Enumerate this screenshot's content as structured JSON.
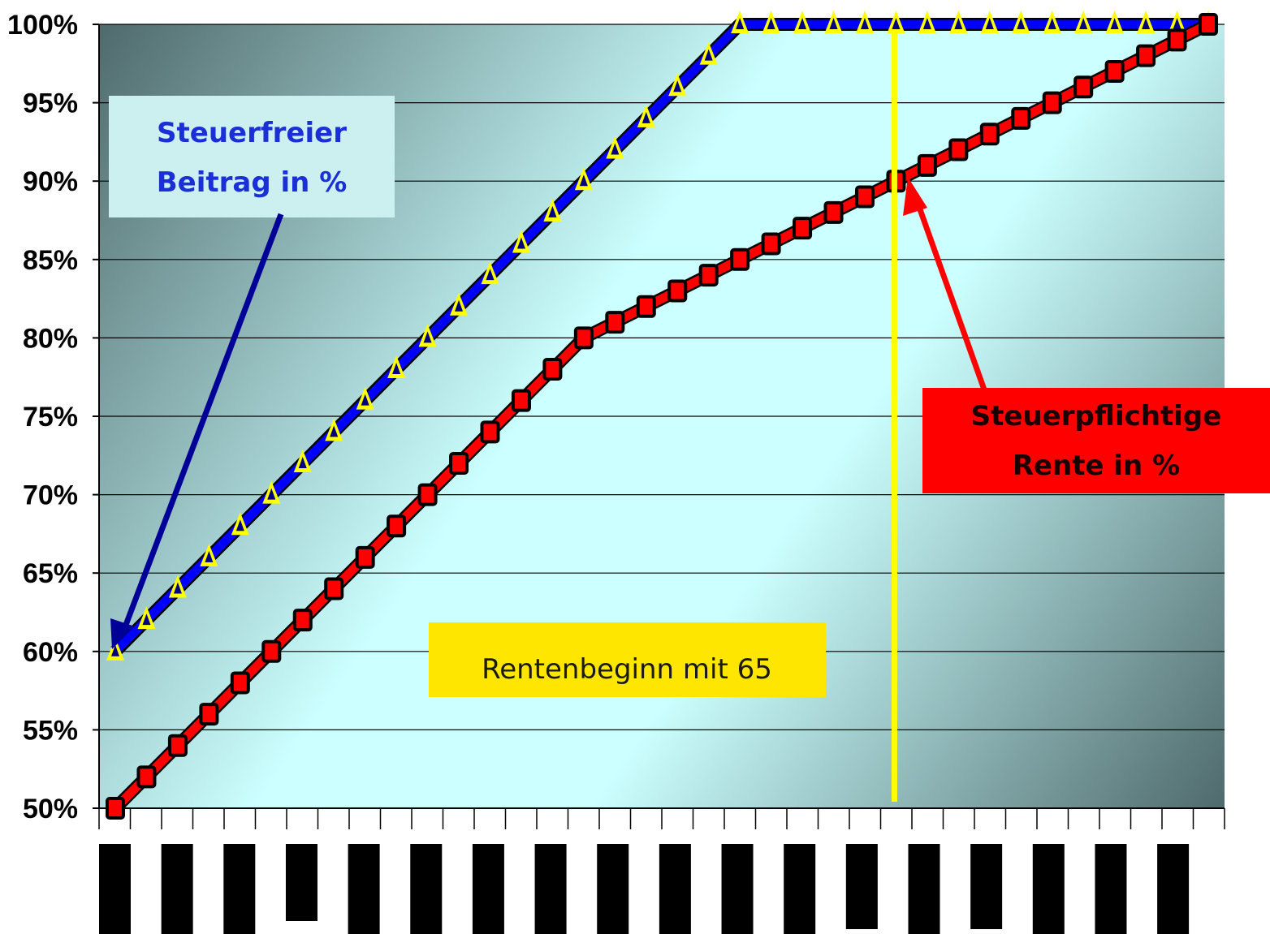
{
  "chart_data": {
    "type": "line",
    "ylim": [
      50,
      100
    ],
    "y_ticks": [
      "50%",
      "55%",
      "60%",
      "65%",
      "70%",
      "75%",
      "80%",
      "85%",
      "90%",
      "95%",
      "100%"
    ],
    "x_count": 36,
    "grid": "horizontal",
    "series": [
      {
        "key": "steuerfreier_beitrag",
        "color": "#0000ff",
        "marker": "triangle",
        "marker_color": "#ffff00",
        "values": [
          60,
          62,
          64,
          66,
          68,
          70,
          72,
          74,
          76,
          78,
          80,
          82,
          84,
          86,
          88,
          90,
          92,
          94,
          96,
          98,
          100,
          100,
          100,
          100,
          100,
          100,
          100,
          100,
          100,
          100,
          100,
          100,
          100,
          100,
          100,
          100
        ]
      },
      {
        "key": "steuerpflichtige_rente",
        "color": "#ff0000",
        "marker": "square",
        "marker_color": "#ff0000",
        "values": [
          50,
          52,
          54,
          56,
          58,
          60,
          62,
          64,
          66,
          68,
          70,
          72,
          74,
          76,
          78,
          80,
          81,
          82,
          83,
          84,
          85,
          86,
          87,
          88,
          89,
          90,
          91,
          92,
          93,
          94,
          95,
          96,
          97,
          98,
          99,
          100
        ]
      }
    ],
    "vertical_marker_index": 25,
    "vertical_marker_color": "#ffff00",
    "annotations": {
      "blue_label": [
        "Steuerfreier",
        "Beitrag in %"
      ],
      "red_label": [
        "Steuerpflichtige",
        "Rente in %"
      ],
      "yellow_label": "Rentenbeginn mit 65"
    },
    "x_label_redaction_bars": 18
  },
  "colors": {
    "plot_light": "#ccffff",
    "plot_dark": "#4f6a6c",
    "blue_box": "#ccf0f0",
    "red_box": "#ff0000",
    "yellow_box": "#ffe600",
    "arrow_blue": "#000099",
    "arrow_red": "#ff0000"
  }
}
